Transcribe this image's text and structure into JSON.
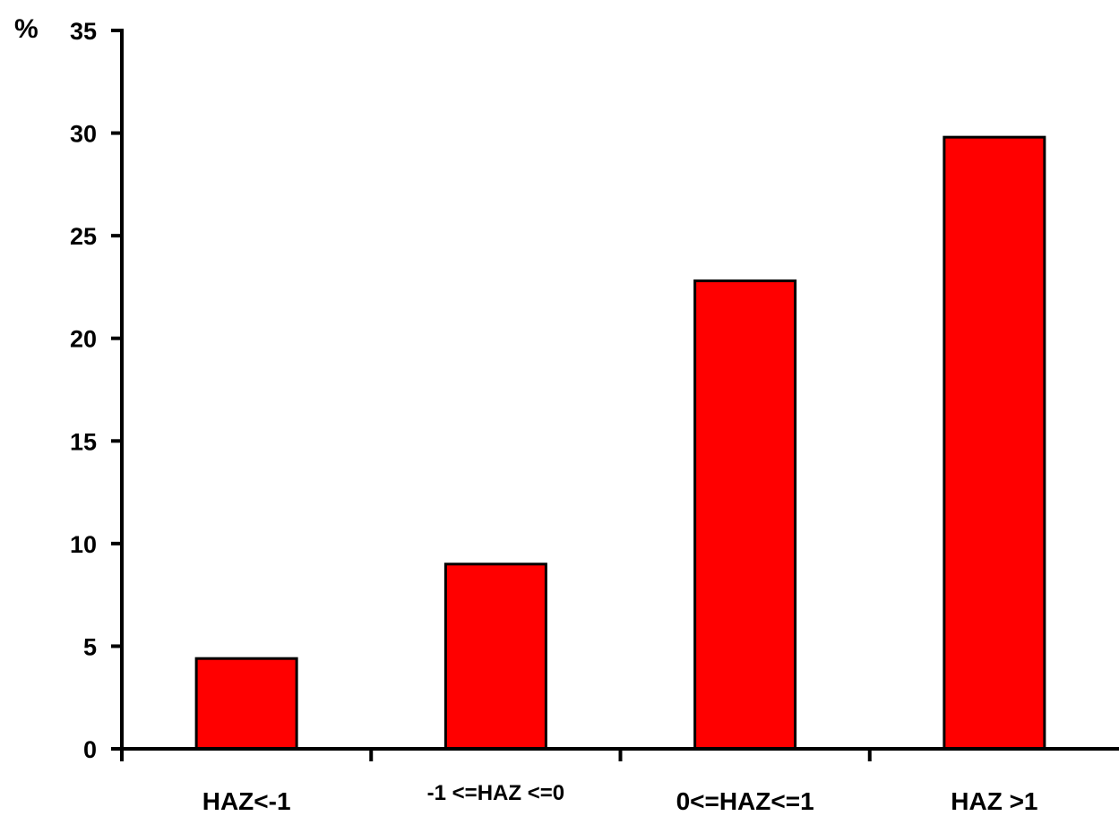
{
  "chart_data": {
    "type": "bar",
    "categories": [
      "HAZ<-1",
      "-1 <=HAZ <=0",
      "0<=HAZ<=1",
      "HAZ >1"
    ],
    "values": [
      4.4,
      9.0,
      22.8,
      29.8
    ],
    "title": "",
    "xlabel": "",
    "ylabel": "%",
    "ylim": [
      0,
      35
    ],
    "yticks": [
      0,
      5,
      10,
      15,
      20,
      25,
      30,
      35
    ],
    "grid": false,
    "legend": "none",
    "bar_color": "#ff0000",
    "bar_edge_color": "#000000"
  }
}
